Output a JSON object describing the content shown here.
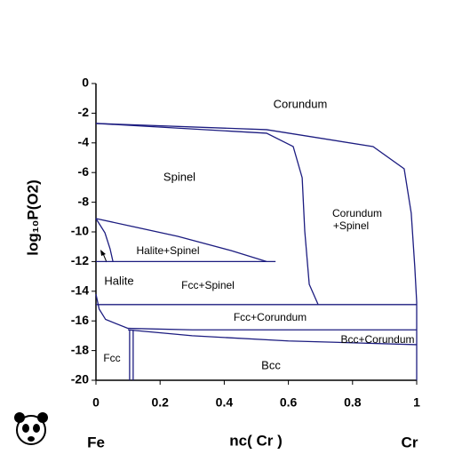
{
  "chart_data": {
    "type": "line",
    "xlabel": "nc( Cr )",
    "ylabel": "log₁₀P(O2)",
    "x_end_labels": [
      "Fe",
      "Cr"
    ],
    "xlim": [
      0,
      1
    ],
    "ylim": [
      -20,
      0
    ],
    "xticks": [
      0,
      0.2,
      0.4,
      0.6,
      0.8,
      1
    ],
    "yticks": [
      0,
      -2,
      -4,
      -6,
      -8,
      -10,
      -12,
      -14,
      -16,
      -18,
      -20
    ],
    "annotations": [
      "Corundum",
      "Spinel",
      "Corundum",
      "+Spinel",
      "Halite+Spinel",
      "Halite",
      "Fcc+Spinel",
      "Fcc+Corundum",
      "Bcc+Corundum",
      "Fcc",
      "Bcc"
    ],
    "series": [
      {
        "color": "#1c1c80",
        "x": [
          0,
          0.532,
          0.615,
          0.643,
          0.651,
          0.665,
          0.693
        ],
        "y": [
          -2.69,
          -3.35,
          -4.25,
          -6.35,
          -9.94,
          -13.53,
          -14.91
        ]
      },
      {
        "color": "#1c1c80",
        "x": [
          0,
          0.532,
          0.864,
          0.961,
          0.983,
          0.994,
          1
        ],
        "y": [
          -2.69,
          -3.11,
          -4.25,
          -5.75,
          -8.74,
          -12.34,
          -14.73
        ]
      },
      {
        "color": "#1c1c80",
        "x": [
          0,
          0.255,
          0.421,
          0.532
        ],
        "y": [
          -9.1,
          -10.3,
          -11.26,
          -12
        ]
      },
      {
        "color": "#1c1c80",
        "x": [
          0,
          0.028,
          0.044,
          0.053
        ],
        "y": [
          -9.1,
          -10.06,
          -11.14,
          -12
        ]
      },
      {
        "color": "#1c1c80",
        "x": [
          0,
          0.56
        ],
        "y": [
          -12,
          -12
        ]
      },
      {
        "color": "#1c1c80",
        "x": [
          0,
          1
        ],
        "y": [
          -14.9,
          -14.9
        ]
      },
      {
        "color": "#1c1c80",
        "x": [
          0,
          0.01,
          0.03,
          0.1,
          0.3,
          1
        ],
        "y": [
          -14.2,
          -15.2,
          -15.9,
          -16.5,
          -16.6,
          -16.6
        ]
      },
      {
        "color": "#1c1c80",
        "x": [
          0.1,
          0.3,
          0.6,
          1
        ],
        "y": [
          -16.6,
          -17.0,
          -17.35,
          -17.6
        ]
      },
      {
        "color": "#1c1c80",
        "x": [
          0.105,
          0.105
        ],
        "y": [
          -16.6,
          -20
        ]
      },
      {
        "color": "#1c1c80",
        "x": [
          0.116,
          0.116
        ],
        "y": [
          -16.6,
          -20
        ]
      },
      {
        "color": "#1c1c80",
        "x": [
          1,
          1
        ],
        "y": [
          -14.73,
          -20
        ]
      }
    ]
  }
}
